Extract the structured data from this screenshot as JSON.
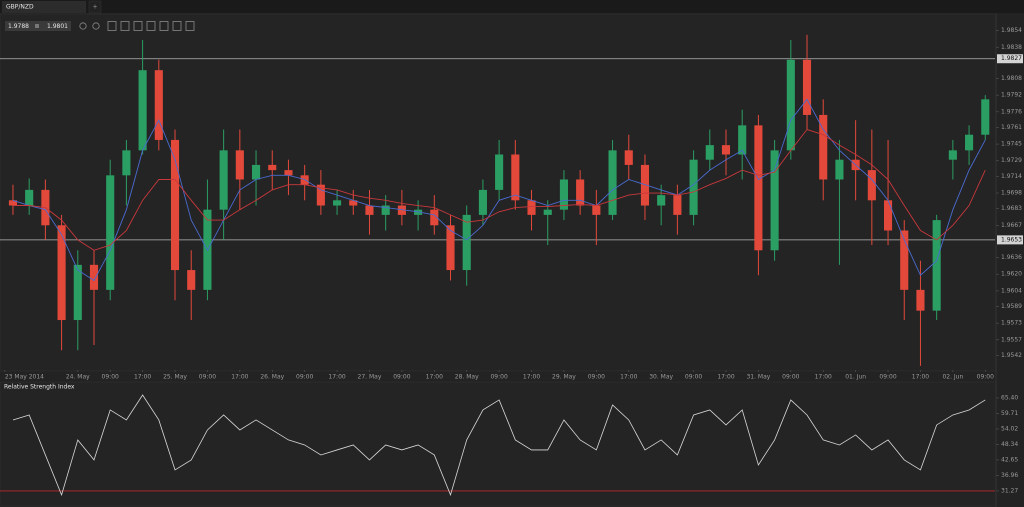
{
  "tab": {
    "symbol": "GBP/NZD",
    "add": "+"
  },
  "quote": {
    "bid": 1.9788,
    "ask": 1.9801
  },
  "chart_data": [
    {
      "type": "candlestick",
      "x": [
        2,
        6,
        10,
        14,
        18,
        22,
        26,
        30,
        34,
        38,
        42,
        46,
        50,
        54,
        58,
        62,
        66,
        70,
        74,
        78,
        82,
        86,
        90,
        94,
        98,
        102,
        106,
        110,
        114,
        118,
        122,
        126,
        130,
        134,
        138,
        142,
        146,
        150,
        154,
        158,
        162,
        166,
        170,
        174,
        178,
        182,
        186,
        190,
        194,
        198,
        202,
        206,
        210,
        214,
        218,
        222,
        226,
        230,
        234,
        238,
        242
      ],
      "open": [
        1.9691,
        1.9686,
        1.9701,
        1.9667,
        1.9576,
        1.9629,
        1.9605,
        1.9715,
        1.9739,
        1.9816,
        1.9749,
        1.9624,
        1.9605,
        1.9682,
        1.9739,
        1.9711,
        1.9725,
        1.972,
        1.9715,
        1.9706,
        1.9686,
        1.9691,
        1.9686,
        1.9677,
        1.9686,
        1.9677,
        1.9682,
        1.9667,
        1.9624,
        1.9677,
        1.9701,
        1.9735,
        1.9691,
        1.9677,
        1.9682,
        1.9711,
        1.9686,
        1.9677,
        1.9739,
        1.9725,
        1.9686,
        1.9696,
        1.9677,
        1.973,
        1.9744,
        1.9735,
        1.9763,
        1.9643,
        1.9739,
        1.9826,
        1.9773,
        1.9711,
        1.973,
        1.972,
        1.9691,
        1.9662,
        1.9605,
        1.9585,
        1.973,
        1.9739,
        1.9754
      ],
      "high": [
        1.9706,
        1.9712,
        1.9711,
        1.9677,
        1.9643,
        1.9643,
        1.973,
        1.9749,
        1.9845,
        1.9826,
        1.9759,
        1.9643,
        1.9711,
        1.9759,
        1.9759,
        1.9739,
        1.9739,
        1.973,
        1.9725,
        1.972,
        1.9701,
        1.9701,
        1.9701,
        1.9696,
        1.9701,
        1.9691,
        1.9696,
        1.9677,
        1.9686,
        1.9711,
        1.9749,
        1.9749,
        1.9701,
        1.9691,
        1.972,
        1.972,
        1.9701,
        1.9749,
        1.9754,
        1.9735,
        1.9706,
        1.9706,
        1.9739,
        1.9759,
        1.9759,
        1.9778,
        1.9773,
        1.9749,
        1.9845,
        1.985,
        1.9788,
        1.9749,
        1.9768,
        1.9759,
        1.9749,
        1.9672,
        1.9633,
        1.9677,
        1.9749,
        1.9763,
        1.9792
      ],
      "low": [
        1.9677,
        1.9677,
        1.9653,
        1.9547,
        1.9547,
        1.9552,
        1.9595,
        1.9686,
        1.9735,
        1.9739,
        1.9595,
        1.9576,
        1.9595,
        1.9653,
        1.9682,
        1.9686,
        1.9701,
        1.9696,
        1.9691,
        1.9677,
        1.9677,
        1.9677,
        1.9658,
        1.9662,
        1.9667,
        1.9662,
        1.9658,
        1.9614,
        1.9609,
        1.9667,
        1.9691,
        1.9682,
        1.9662,
        1.9648,
        1.9672,
        1.9677,
        1.9648,
        1.9672,
        1.9711,
        1.9672,
        1.9667,
        1.9658,
        1.9667,
        1.972,
        1.9715,
        1.9711,
        1.9619,
        1.9633,
        1.973,
        1.9759,
        1.9691,
        1.9629,
        1.9691,
        1.9648,
        1.9648,
        1.9576,
        1.9532,
        1.9576,
        1.9711,
        1.9725,
        1.9749
      ],
      "close": [
        1.9686,
        1.9701,
        1.9667,
        1.9576,
        1.9629,
        1.9605,
        1.9715,
        1.9739,
        1.9816,
        1.9749,
        1.9624,
        1.9605,
        1.9682,
        1.9739,
        1.9711,
        1.9725,
        1.972,
        1.9715,
        1.9706,
        1.9686,
        1.9691,
        1.9686,
        1.9677,
        1.9686,
        1.9677,
        1.9682,
        1.9667,
        1.9624,
        1.9677,
        1.9701,
        1.9735,
        1.9691,
        1.9677,
        1.9682,
        1.9711,
        1.9686,
        1.9677,
        1.9739,
        1.9725,
        1.9686,
        1.9696,
        1.9677,
        1.973,
        1.9744,
        1.9735,
        1.9763,
        1.9643,
        1.9739,
        1.9826,
        1.9773,
        1.9711,
        1.973,
        1.972,
        1.9691,
        1.9662,
        1.9605,
        1.9585,
        1.9672,
        1.9739,
        1.9754,
        1.9788
      ],
      "series": [
        {
          "color": "#4a6bd0",
          "values": [
            1.9691,
            1.9686,
            1.9682,
            1.9658,
            1.9624,
            1.9614,
            1.9643,
            1.9682,
            1.9739,
            1.9768,
            1.973,
            1.9672,
            1.9643,
            1.9672,
            1.9701,
            1.9711,
            1.9715,
            1.9715,
            1.9711,
            1.9701,
            1.9696,
            1.9691,
            1.9686,
            1.9684,
            1.9682,
            1.968,
            1.9677,
            1.9662,
            1.9653,
            1.9667,
            1.9691,
            1.9696,
            1.9691,
            1.9686,
            1.9691,
            1.9691,
            1.9686,
            1.9701,
            1.9711,
            1.9706,
            1.9701,
            1.9696,
            1.9706,
            1.972,
            1.973,
            1.9739,
            1.9711,
            1.972,
            1.9768,
            1.9788,
            1.9759,
            1.9739,
            1.9725,
            1.9711,
            1.9691,
            1.9653,
            1.9619,
            1.9633,
            1.9682,
            1.972,
            1.9749
          ]
        },
        {
          "color": "#c8383c",
          "values": [
            1.9686,
            1.9686,
            1.9684,
            1.9672,
            1.9653,
            1.9643,
            1.9648,
            1.9662,
            1.9691,
            1.9711,
            1.9711,
            1.9691,
            1.9672,
            1.9672,
            1.9682,
            1.9691,
            1.9701,
            1.9706,
            1.9706,
            1.9703,
            1.9701,
            1.9696,
            1.9693,
            1.9691,
            1.9688,
            1.9686,
            1.9684,
            1.9677,
            1.967,
            1.9672,
            1.968,
            1.9684,
            1.9685,
            1.9685,
            1.9686,
            1.9687,
            1.9686,
            1.9691,
            1.9696,
            1.9698,
            1.9698,
            1.9696,
            1.9699,
            1.9706,
            1.9712,
            1.972,
            1.9715,
            1.9718,
            1.9739,
            1.9759,
            1.9754,
            1.9744,
            1.9735,
            1.9725,
            1.9711,
            1.9686,
            1.9662,
            1.9653,
            1.9667,
            1.9686,
            1.972
          ]
        }
      ],
      "up_color": "#2b9e63",
      "down_color": "#e2493b",
      "xlim": [
        -1.2,
        244.4
      ],
      "xticks": [
        {
          "value": 0,
          "label": "23 May 2014"
        },
        {
          "value": 18,
          "label": "24. May"
        },
        {
          "value": 26,
          "label": "09:00"
        },
        {
          "value": 34,
          "label": "17:00"
        },
        {
          "value": 42,
          "label": "25. May"
        },
        {
          "value": 50,
          "label": "09:00"
        },
        {
          "value": 58,
          "label": "17:00"
        },
        {
          "value": 66,
          "label": "26. May"
        },
        {
          "value": 74,
          "label": "09:00"
        },
        {
          "value": 82,
          "label": "17:00"
        },
        {
          "value": 90,
          "label": "27. May"
        },
        {
          "value": 98,
          "label": "09:00"
        },
        {
          "value": 106,
          "label": "17:00"
        },
        {
          "value": 114,
          "label": "28. May"
        },
        {
          "value": 122,
          "label": "09:00"
        },
        {
          "value": 130,
          "label": "17:00"
        },
        {
          "value": 138,
          "label": "29. May"
        },
        {
          "value": 146,
          "label": "09:00"
        },
        {
          "value": 154,
          "label": "17:00"
        },
        {
          "value": 162,
          "label": "30. May"
        },
        {
          "value": 170,
          "label": "09:00"
        },
        {
          "value": 178,
          "label": "17:00"
        },
        {
          "value": 186,
          "label": "31. May"
        },
        {
          "value": 194,
          "label": "09:00"
        },
        {
          "value": 202,
          "label": "17:00"
        },
        {
          "value": 210,
          "label": "01. Jun"
        },
        {
          "value": 218,
          "label": "09:00"
        },
        {
          "value": 226,
          "label": "17:00"
        },
        {
          "value": 234,
          "label": "02. Jun"
        },
        {
          "value": 242,
          "label": "09:00"
        }
      ],
      "ylim": [
        1.9528,
        1.9869
      ],
      "yticks": [
        1.9854,
        1.9838,
        1.9808,
        1.9792,
        1.9776,
        1.9761,
        1.9745,
        1.9729,
        1.9714,
        1.9698,
        1.9683,
        1.9667,
        1.9636,
        {
          "value": 1.962,
          "label": "1.9620"
        },
        1.9604,
        1.9589,
        1.9573,
        1.9557,
        1.9542
      ],
      "hlines": [
        1.9827,
        1.9653
      ]
    },
    {
      "type": "line",
      "title": "Relative Strength Index",
      "x": [
        2,
        6,
        10,
        14,
        18,
        22,
        26,
        30,
        34,
        38,
        42,
        46,
        50,
        54,
        58,
        62,
        66,
        70,
        74,
        78,
        82,
        86,
        90,
        94,
        98,
        102,
        106,
        110,
        114,
        118,
        122,
        126,
        130,
        134,
        138,
        142,
        146,
        150,
        154,
        158,
        162,
        166,
        170,
        174,
        178,
        182,
        186,
        190,
        194,
        198,
        202,
        206,
        210,
        214,
        218,
        222,
        226,
        230,
        234,
        238,
        242
      ],
      "values": [
        57.33,
        59.16,
        44.48,
        29.8,
        49.99,
        42.65,
        61.0,
        57.33,
        66.5,
        57.33,
        38.98,
        42.65,
        53.66,
        59.16,
        53.66,
        57.33,
        53.66,
        49.99,
        48.15,
        44.48,
        46.32,
        48.15,
        42.65,
        48.15,
        46.32,
        48.15,
        44.48,
        29.8,
        49.99,
        61.0,
        64.67,
        49.99,
        46.32,
        46.32,
        57.33,
        49.99,
        46.32,
        62.83,
        57.33,
        46.32,
        49.99,
        44.48,
        59.16,
        61.0,
        55.49,
        61.0,
        40.81,
        49.99,
        64.67,
        59.16,
        49.99,
        48.15,
        51.82,
        46.32,
        49.99,
        42.65,
        38.98,
        55.49,
        59.16,
        61.0,
        64.67
      ],
      "color": "#d8d8d8",
      "xlim": [
        -1.2,
        244.4
      ],
      "ylim": [
        26.1,
        70.9
      ],
      "yticks": [
        {
          "value": 65.4,
          "label": "65.40"
        },
        59.71,
        54.02,
        48.34,
        42.65,
        36.96,
        31.27
      ],
      "level": 31.27,
      "level_color": "#b8282a"
    }
  ]
}
